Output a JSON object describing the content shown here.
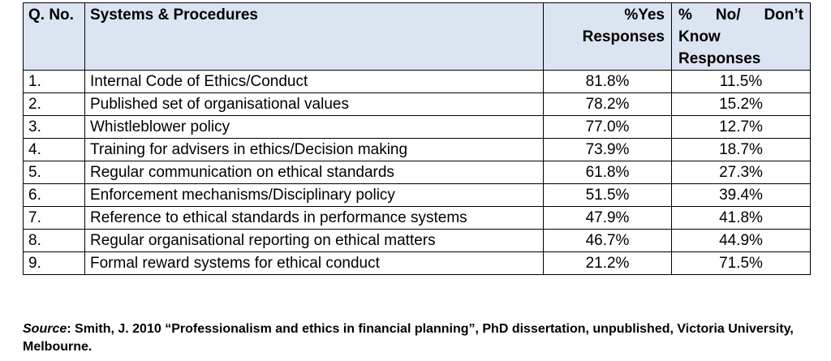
{
  "table": {
    "headers": {
      "qno": "Q. No.",
      "systems": "Systems & Procedures",
      "yes": "%Yes Responses",
      "no": "% No/ Don’t Know Responses"
    },
    "rows": [
      {
        "qno": "1.",
        "item": "Internal Code of Ethics/Conduct",
        "yes": "81.8%",
        "no": "11.5%"
      },
      {
        "qno": "2.",
        "item": "Published set of organisational values",
        "yes": "78.2%",
        "no": "15.2%"
      },
      {
        "qno": "3.",
        "item": "Whistleblower policy",
        "yes": "77.0%",
        "no": "12.7%"
      },
      {
        "qno": "4.",
        "item": "Training for advisers in ethics/Decision making",
        "yes": "73.9%",
        "no": "18.7%"
      },
      {
        "qno": "5.",
        "item": "Regular communication on ethical standards",
        "yes": "61.8%",
        "no": "27.3%"
      },
      {
        "qno": "6.",
        "item": "Enforcement mechanisms/Disciplinary policy",
        "yes": "51.5%",
        "no": "39.4%"
      },
      {
        "qno": "7.",
        "item": "Reference to ethical standards in performance systems",
        "yes": "47.9%",
        "no": "41.8%"
      },
      {
        "qno": "8.",
        "item": "Regular organisational reporting on ethical matters",
        "yes": "46.7%",
        "no": "44.9%"
      },
      {
        "qno": "9.",
        "item": "Formal reward systems for ethical conduct",
        "yes": "21.2%",
        "no": "71.5%"
      }
    ]
  },
  "source": {
    "label": "Source",
    "text": ": Smith, J. 2010 “Professionalism and ethics in financial planning”, PhD dissertation, unpublished, Victoria University, Melbourne."
  },
  "colors": {
    "header_background": "#dbe5f1",
    "border": "#000000"
  }
}
